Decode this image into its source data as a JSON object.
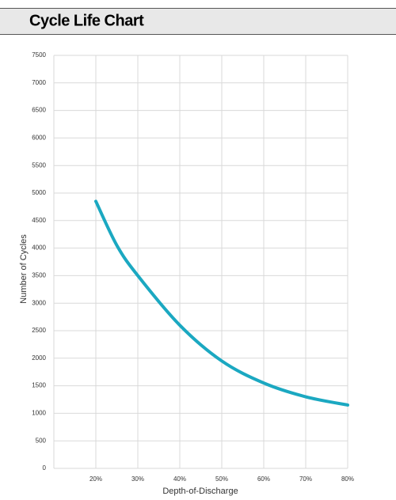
{
  "header": {
    "title": "Cycle Life Chart"
  },
  "chart_data": {
    "type": "line",
    "x_label": "Depth-of-Discharge",
    "y_label": "Number of Cycles",
    "x": [
      20,
      25,
      30,
      40,
      50,
      60,
      70,
      80
    ],
    "series": [
      {
        "name": "Cycle Life",
        "color": "#1ba8c1",
        "values": [
          4850,
          4050,
          3500,
          2600,
          1950,
          1550,
          1300,
          1150
        ]
      }
    ],
    "xlim": [
      10,
      80
    ],
    "xticks": [
      {
        "value": 20,
        "label": "20%"
      },
      {
        "value": 30,
        "label": "30%"
      },
      {
        "value": 40,
        "label": "40%"
      },
      {
        "value": 50,
        "label": "50%"
      },
      {
        "value": 60,
        "label": "60%"
      },
      {
        "value": 70,
        "label": "70%"
      },
      {
        "value": 80,
        "label": "80%"
      }
    ],
    "ylim": [
      0,
      7500
    ],
    "yticks": [
      0,
      500,
      1000,
      1500,
      2000,
      2500,
      3000,
      3500,
      4000,
      4500,
      5000,
      5500,
      6000,
      6500,
      7000,
      7500
    ],
    "grid": true
  }
}
